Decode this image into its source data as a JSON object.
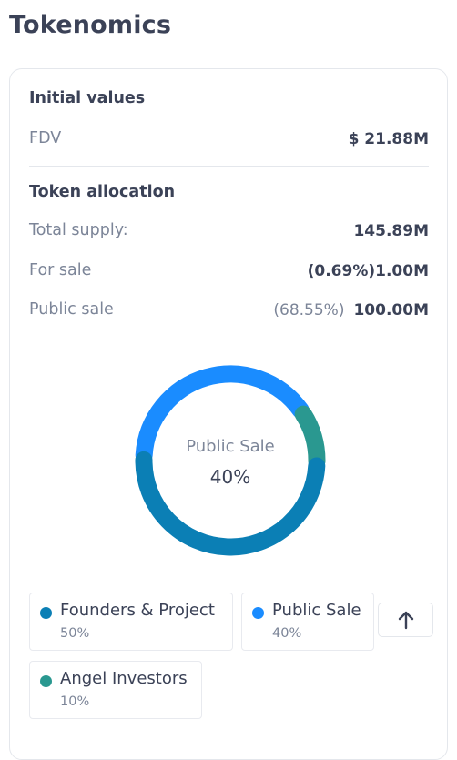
{
  "page": {
    "title": "Tokenomics"
  },
  "initial_values": {
    "heading": "Initial values",
    "fdv_label": "FDV",
    "fdv_value": "$ 21.88M"
  },
  "token_allocation": {
    "heading": "Token allocation",
    "total_supply_label": "Total supply:",
    "total_supply_value": "145.89M",
    "for_sale_label": "For sale",
    "for_sale_value": "(0.69%)1.00M",
    "public_sale_label": "Public sale",
    "public_sale_pct": "(68.55%)",
    "public_sale_value": "100.00M"
  },
  "donut": {
    "center_label": "Public Sale",
    "center_value": "40%"
  },
  "chart_data": {
    "type": "pie",
    "donut": true,
    "categories": [
      "Founders & Project",
      "Public Sale",
      "Angel Investors"
    ],
    "values": [
      50,
      40,
      10
    ],
    "colors": [
      "#0b7fb5",
      "#1a8cff",
      "#2a9890"
    ]
  },
  "legend": [
    {
      "name": "Founders & Project",
      "pct": "50%",
      "color": "#0b7fb5"
    },
    {
      "name": "Public Sale",
      "pct": "40%",
      "color": "#1a8cff"
    },
    {
      "name": "Angel Investors",
      "pct": "10%",
      "color": "#2a9890"
    }
  ],
  "actions": {
    "scroll_top_icon": "arrow-up-icon"
  }
}
